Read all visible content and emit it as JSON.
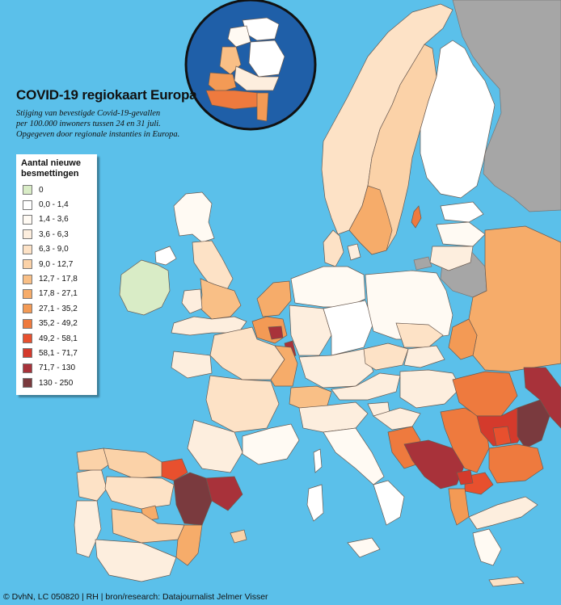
{
  "title": "COVID-19 regiokaart Europa",
  "subtitle_lines": [
    "Stijging van bevestigde Covid-19-gevallen",
    "per 100.000 inwoners tussen 24 en 31 juli.",
    "Opgegeven door regionale instanties in Europa."
  ],
  "legend": {
    "title_lines": [
      "Aantal nieuwe",
      "besmettingen"
    ],
    "items": [
      {
        "label": "0",
        "color": "#d9ecc6"
      },
      {
        "label": "0,0 - 1,4",
        "color": "#ffffff"
      },
      {
        "label": "1,4 - 3,6",
        "color": "#fffaf3"
      },
      {
        "label": "3,6 - 6,3",
        "color": "#fdeede"
      },
      {
        "label": "6,3 - 9,0",
        "color": "#fde2c6"
      },
      {
        "label": "9,0 - 12,7",
        "color": "#fbd2a8"
      },
      {
        "label": "12,7 - 17,8",
        "color": "#f9bf86"
      },
      {
        "label": "17,8 - 27,1",
        "color": "#f6ac6a"
      },
      {
        "label": "27,1 - 35,2",
        "color": "#f39a55"
      },
      {
        "label": "35,2 - 49,2",
        "color": "#ee7a3e"
      },
      {
        "label": "49,2 - 58,1",
        "color": "#e8502e"
      },
      {
        "label": "58,1 - 71,7",
        "color": "#d43a2c"
      },
      {
        "label": "71,7 - 130",
        "color": "#a8323a"
      },
      {
        "label": "130 - 250",
        "color": "#7a3a3e"
      }
    ]
  },
  "footer": "© DvhN, LC 050820 | RH | bron/research: Datajournalist Jelmer Visser",
  "colors": {
    "sea": "#5bc0ea",
    "non_covered_land": "#a6a6a6",
    "inset_background": "#1f5fa8",
    "inset_border": "#111111",
    "region_border": "#6a5a50"
  }
}
